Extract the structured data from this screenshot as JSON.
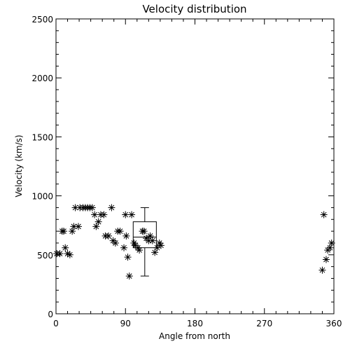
{
  "chart_data": {
    "type": "scatter",
    "title": "Velocity distribution",
    "xlabel": "Angle from north",
    "ylabel": "Velocity (km/s)",
    "xlim": [
      0,
      360
    ],
    "ylim": [
      0,
      2500
    ],
    "xticks": [
      0,
      90,
      180,
      270,
      360
    ],
    "yticks": [
      0,
      500,
      1000,
      1500,
      2000,
      2500
    ],
    "grid": false,
    "marker": "asterisk",
    "color": "#000000",
    "points": [
      [
        1,
        510
      ],
      [
        5,
        510
      ],
      [
        8,
        700
      ],
      [
        10,
        700
      ],
      [
        12,
        560
      ],
      [
        15,
        510
      ],
      [
        18,
        500
      ],
      [
        21,
        700
      ],
      [
        23,
        740
      ],
      [
        25,
        900
      ],
      [
        29,
        740
      ],
      [
        31,
        900
      ],
      [
        35,
        900
      ],
      [
        38,
        900
      ],
      [
        41,
        900
      ],
      [
        44,
        900
      ],
      [
        47,
        900
      ],
      [
        50,
        840
      ],
      [
        52,
        740
      ],
      [
        55,
        780
      ],
      [
        58,
        840
      ],
      [
        62,
        840
      ],
      [
        64,
        660
      ],
      [
        68,
        660
      ],
      [
        72,
        900
      ],
      [
        74,
        620
      ],
      [
        77,
        600
      ],
      [
        80,
        700
      ],
      [
        83,
        700
      ],
      [
        88,
        560
      ],
      [
        90,
        840
      ],
      [
        91,
        660
      ],
      [
        93,
        480
      ],
      [
        95,
        320
      ],
      [
        98,
        840
      ],
      [
        101,
        600
      ],
      [
        103,
        580
      ],
      [
        106,
        560
      ],
      [
        108,
        540
      ],
      [
        112,
        700
      ],
      [
        114,
        700
      ],
      [
        117,
        640
      ],
      [
        120,
        620
      ],
      [
        122,
        660
      ],
      [
        125,
        620
      ],
      [
        128,
        520
      ],
      [
        131,
        560
      ],
      [
        134,
        600
      ],
      [
        136,
        580
      ],
      [
        345,
        370
      ],
      [
        347,
        840
      ],
      [
        350,
        460
      ],
      [
        352,
        540
      ],
      [
        355,
        560
      ],
      [
        357,
        600
      ]
    ],
    "boxplot": {
      "x": 115,
      "min": 320,
      "q1": 560,
      "median": 650,
      "q3": 780,
      "max": 900,
      "width": 30
    }
  }
}
